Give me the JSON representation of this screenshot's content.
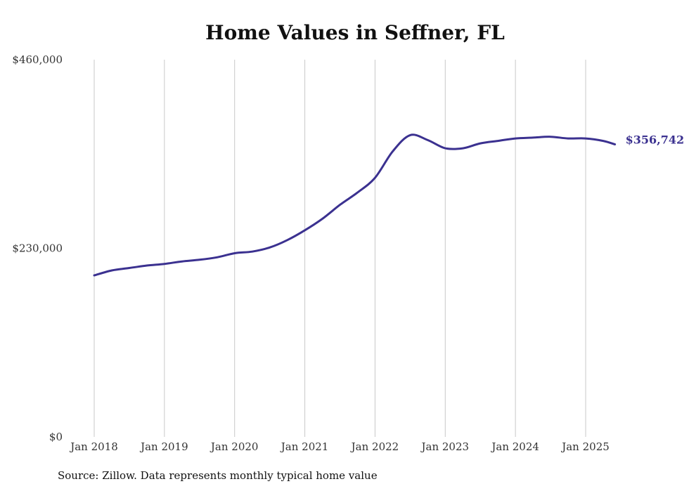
{
  "chart_data": {
    "type": "line",
    "title": "Home Values in Seffner, FL",
    "source": "Source: Zillow. Data represents monthly typical home value",
    "ylim": [
      0,
      460000
    ],
    "y_ticks": [
      0,
      230000,
      460000
    ],
    "y_tick_labels": [
      "$0",
      "$230,000",
      "$460,000"
    ],
    "x_tick_labels": [
      "Jan 2018",
      "Jan 2019",
      "Jan 2020",
      "Jan 2021",
      "Jan 2022",
      "Jan 2023",
      "Jan 2024",
      "Jan 2025"
    ],
    "grid": "vertical",
    "end_label": "$356,742",
    "colors": {
      "line": "#3b3190",
      "grid": "#c8c8c8",
      "end_label": "#3b3190"
    },
    "series": [
      {
        "x": [
          "2018-01",
          "2018-04",
          "2018-07",
          "2018-10",
          "2019-01",
          "2019-04",
          "2019-07",
          "2019-10",
          "2020-01",
          "2020-04",
          "2020-07",
          "2020-10",
          "2021-01",
          "2021-04",
          "2021-07",
          "2021-10",
          "2022-01",
          "2022-04",
          "2022-07",
          "2022-10",
          "2023-01",
          "2023-04",
          "2023-07",
          "2023-10",
          "2024-01",
          "2024-04",
          "2024-07",
          "2024-10",
          "2025-01",
          "2025-04",
          "2025-06"
        ],
        "values": [
          197000,
          203000,
          206000,
          209000,
          211000,
          214000,
          216000,
          219000,
          224000,
          226000,
          231000,
          240000,
          252000,
          266000,
          283000,
          298000,
          316000,
          348000,
          368000,
          362000,
          352000,
          352000,
          358000,
          361000,
          364000,
          365000,
          366000,
          364000,
          364000,
          361000,
          356742
        ]
      }
    ]
  }
}
